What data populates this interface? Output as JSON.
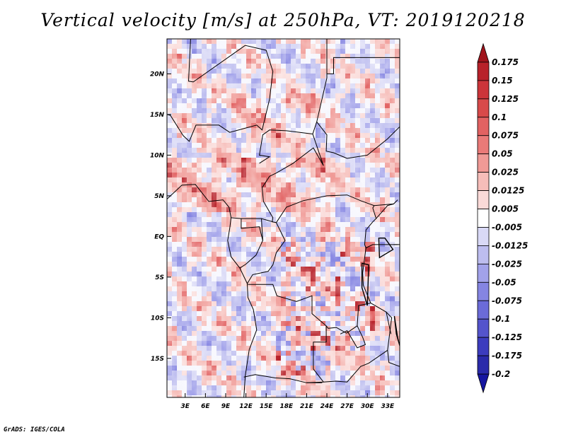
{
  "chart_data": {
    "type": "heatmap",
    "title": "Vertical velocity [m/s] at 250hPa, VT: 2019120218",
    "variable": "Vertical velocity",
    "units": "m/s",
    "level": "250hPa",
    "valid_time": "2019120218",
    "x_axis": {
      "ticks": [
        {
          "value": 3,
          "label": "3E"
        },
        {
          "value": 6,
          "label": "6E"
        },
        {
          "value": 9,
          "label": "9E"
        },
        {
          "value": 12,
          "label": "12E"
        },
        {
          "value": 15,
          "label": "15E"
        },
        {
          "value": 18,
          "label": "18E"
        },
        {
          "value": 21,
          "label": "21E"
        },
        {
          "value": 24,
          "label": "24E"
        },
        {
          "value": 27,
          "label": "27E"
        },
        {
          "value": 30,
          "label": "30E"
        },
        {
          "value": 33,
          "label": "33E"
        }
      ],
      "range": [
        0.3,
        34.8
      ]
    },
    "y_axis": {
      "ticks": [
        {
          "value": 20,
          "label": "20N"
        },
        {
          "value": 15,
          "label": "15N"
        },
        {
          "value": 10,
          "label": "10N"
        },
        {
          "value": 5,
          "label": "5N"
        },
        {
          "value": 0,
          "label": "EQ"
        },
        {
          "value": -5,
          "label": "5S"
        },
        {
          "value": -10,
          "label": "10S"
        },
        {
          "value": -15,
          "label": "15S"
        }
      ],
      "range": [
        -19.8,
        24.3
      ]
    },
    "colorbar": {
      "levels": [
        "0.175",
        "0.15",
        "0.125",
        "0.1",
        "0.075",
        "0.05",
        "0.025",
        "0.0125",
        "0.005",
        "-0.005",
        "-0.0125",
        "-0.025",
        "-0.05",
        "-0.075",
        "-0.1",
        "-0.125",
        "-0.175",
        "-0.2"
      ],
      "colors": [
        "#a0141c",
        "#b8222a",
        "#cc353a",
        "#d84a4a",
        "#e26262",
        "#ea7a78",
        "#f09a96",
        "#f6bdb9",
        "#fadad8",
        "#ffffff",
        "#d9d9f6",
        "#bdbdef",
        "#a2a2ea",
        "#8585e2",
        "#6b6bd8",
        "#5454cc",
        "#3c3cbe",
        "#2a2aaa",
        "#1616a0"
      ]
    }
  },
  "credit": "GrADS: IGES/COLA"
}
